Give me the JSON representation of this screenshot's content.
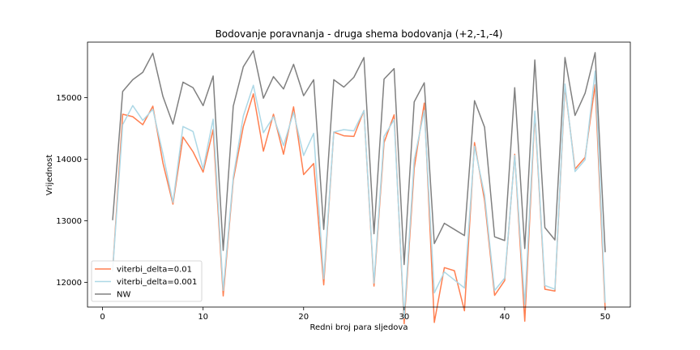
{
  "chart_data": {
    "type": "line",
    "title": "Bodovanje poravnanja - druga shema bodovanja (+2,-1,-4)",
    "xlabel": "Redni broj para sljedova",
    "ylabel": "Vrijednost",
    "xlim": [
      -1.5,
      52.5
    ],
    "ylim": [
      11600,
      15900
    ],
    "xticks": [
      0,
      10,
      20,
      30,
      40,
      50
    ],
    "yticks": [
      12000,
      13000,
      14000,
      15000
    ],
    "legend": "lower-left",
    "grid": false,
    "x": [
      1,
      2,
      3,
      4,
      5,
      6,
      7,
      8,
      9,
      10,
      11,
      12,
      13,
      14,
      15,
      16,
      17,
      18,
      19,
      20,
      21,
      22,
      23,
      24,
      25,
      26,
      27,
      28,
      29,
      30,
      31,
      32,
      33,
      34,
      35,
      36,
      37,
      38,
      39,
      40,
      41,
      42,
      43,
      44,
      45,
      46,
      47,
      48,
      49,
      50
    ],
    "series": [
      {
        "name": "viterbi_delta=0.01",
        "color": "#ff7f50",
        "values": [
          12190,
          14730,
          14690,
          14560,
          14860,
          13940,
          13270,
          14360,
          14120,
          13790,
          14480,
          11780,
          13660,
          14530,
          15060,
          14130,
          14730,
          14080,
          14850,
          13750,
          13930,
          11960,
          14440,
          14380,
          14370,
          14790,
          11940,
          14270,
          14720,
          11330,
          13850,
          14910,
          11350,
          12240,
          12190,
          11540,
          14270,
          13330,
          11790,
          12030,
          14080,
          11370,
          14740,
          11890,
          11860,
          15180,
          13840,
          14030,
          15210,
          11560
        ]
      },
      {
        "name": "viterbi_delta=0.001",
        "color": "#add8e6",
        "values": [
          12180,
          14560,
          14870,
          14630,
          14810,
          14090,
          13300,
          14530,
          14450,
          13840,
          14650,
          11870,
          13710,
          14700,
          15200,
          14430,
          14690,
          14220,
          14760,
          14060,
          14420,
          12060,
          14440,
          14480,
          14460,
          14790,
          11990,
          14370,
          14640,
          11420,
          13990,
          14790,
          11830,
          12170,
          12040,
          11910,
          14210,
          13420,
          11870,
          12070,
          14060,
          11640,
          14780,
          11950,
          11890,
          15220,
          13800,
          13990,
          15430,
          11670
        ]
      },
      {
        "name": "NW",
        "color": "#808080",
        "values": [
          13010,
          15100,
          15290,
          15410,
          15720,
          15020,
          14570,
          15250,
          15160,
          14870,
          15350,
          12520,
          14860,
          15500,
          15760,
          14990,
          15340,
          15140,
          15540,
          15030,
          15290,
          12860,
          15290,
          15170,
          15330,
          15650,
          12790,
          15300,
          15470,
          12290,
          14930,
          15240,
          12630,
          12960,
          12860,
          12760,
          14950,
          14520,
          12740,
          12680,
          15160,
          12550,
          15610,
          12890,
          12690,
          15650,
          14710,
          15070,
          15730,
          12490
        ]
      }
    ]
  }
}
